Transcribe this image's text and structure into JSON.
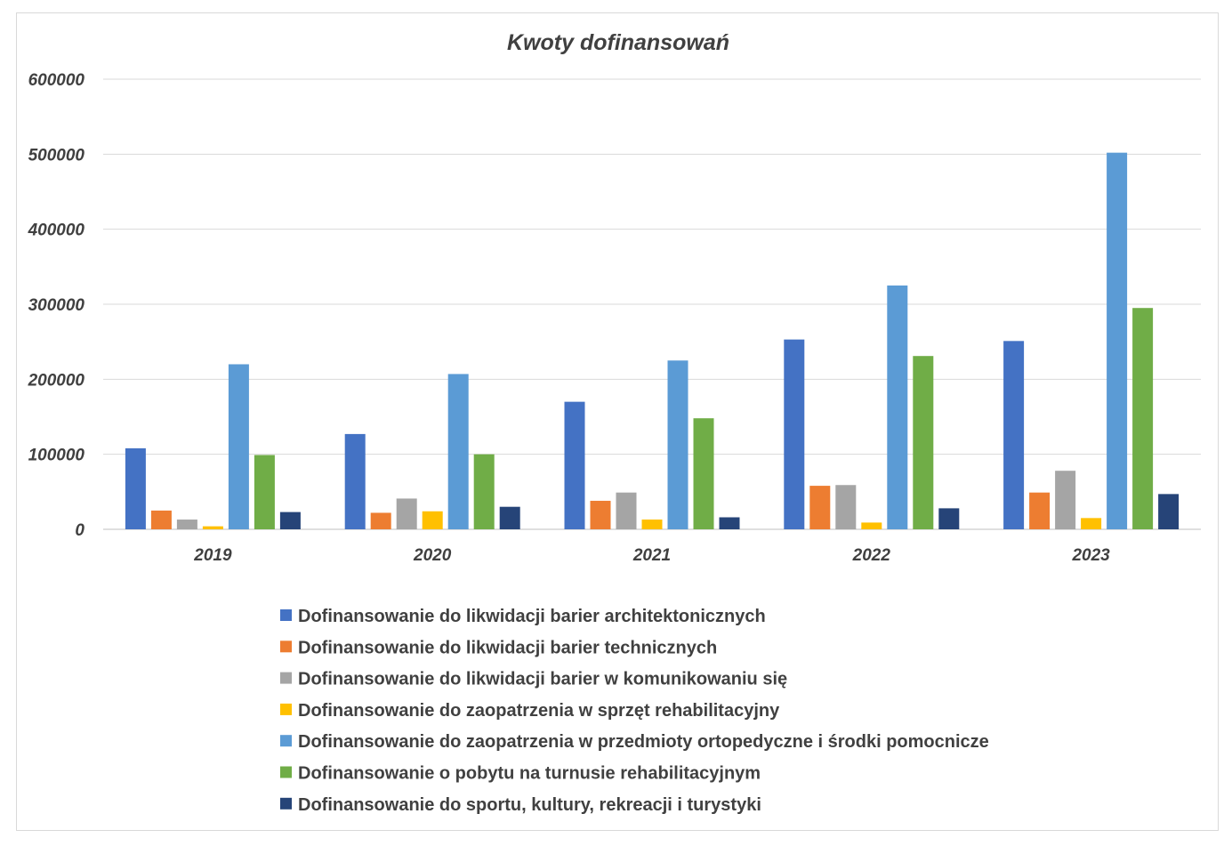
{
  "chart_data": {
    "type": "bar",
    "title": "Kwoty dofinansowań",
    "xlabel": "",
    "ylabel": "",
    "ylim": [
      0,
      600000
    ],
    "yticks": [
      0,
      100000,
      200000,
      300000,
      400000,
      500000,
      600000
    ],
    "grid": true,
    "legend_position": "bottom",
    "categories": [
      "2019",
      "2020",
      "2021",
      "2022",
      "2023"
    ],
    "series": [
      {
        "name": "Dofinansowanie do likwidacji barier architektonicznych",
        "color": "#4472C4",
        "values": [
          108000,
          127000,
          170000,
          253000,
          251000
        ]
      },
      {
        "name": "Dofinansowanie do likwidacji barier technicznych",
        "color": "#ED7D31",
        "values": [
          25000,
          22000,
          38000,
          58000,
          49000
        ]
      },
      {
        "name": "Dofinansowanie do likwidacji barier w komunikowaniu się",
        "color": "#A5A5A5",
        "values": [
          13000,
          41000,
          49000,
          59000,
          78000
        ]
      },
      {
        "name": "Dofinansowanie do zaopatrzenia w sprzęt rehabilitacyjny",
        "color": "#FFC000",
        "values": [
          4000,
          24000,
          13000,
          9000,
          15000
        ]
      },
      {
        "name": "Dofinansowanie do zaopatrzenia w przedmioty ortopedyczne i środki pomocnicze",
        "color": "#5B9BD5",
        "values": [
          220000,
          207000,
          225000,
          325000,
          502000
        ]
      },
      {
        "name": "Dofinansowanie o pobytu na turnusie rehabilitacyjnym",
        "color": "#70AD47",
        "values": [
          99000,
          100000,
          148000,
          231000,
          295000
        ]
      },
      {
        "name": "Dofinansowanie do sportu, kultury, rekreacji i turystyki",
        "color": "#264478",
        "values": [
          23000,
          30000,
          16000,
          28000,
          47000
        ]
      }
    ]
  }
}
